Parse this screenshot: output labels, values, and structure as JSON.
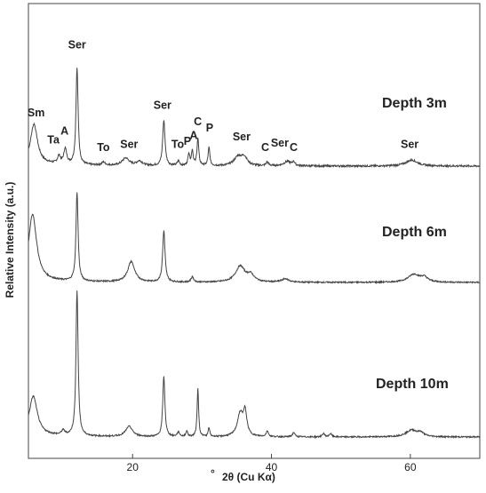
{
  "chart_data": {
    "type": "line",
    "title": "",
    "xlabel": "2θ (Cu Kα)",
    "xlabel_prefix": "°",
    "ylabel": "Relative Intensity (a.u.)",
    "xlim": [
      5,
      70
    ],
    "xticks": [
      20,
      40,
      60
    ],
    "grid": false,
    "legend": "none",
    "line_color": "#444444",
    "series": [
      {
        "name": "Depth 3m",
        "label": "Depth 3m",
        "baseline": 0,
        "peaks": [
          {
            "x": 5.8,
            "h": 0.26,
            "w": 0.6
          },
          {
            "x": 9.4,
            "h": 0.05,
            "w": 0.25
          },
          {
            "x": 10.3,
            "h": 0.1,
            "w": 0.25
          },
          {
            "x": 12.0,
            "h": 0.64,
            "w": 0.18
          },
          {
            "x": 15.8,
            "h": 0.02,
            "w": 0.3
          },
          {
            "x": 19.0,
            "h": 0.05,
            "w": 0.6
          },
          {
            "x": 21.0,
            "h": 0.03,
            "w": 0.5
          },
          {
            "x": 24.5,
            "h": 0.3,
            "w": 0.2
          },
          {
            "x": 26.6,
            "h": 0.03,
            "w": 0.2
          },
          {
            "x": 28.1,
            "h": 0.08,
            "w": 0.15
          },
          {
            "x": 28.6,
            "h": 0.1,
            "w": 0.15
          },
          {
            "x": 29.4,
            "h": 0.18,
            "w": 0.15
          },
          {
            "x": 31.0,
            "h": 0.12,
            "w": 0.15
          },
          {
            "x": 35.2,
            "h": 0.06,
            "w": 0.7
          },
          {
            "x": 36.1,
            "h": 0.05,
            "w": 0.5
          },
          {
            "x": 39.4,
            "h": 0.025,
            "w": 0.2
          },
          {
            "x": 42.3,
            "h": 0.03,
            "w": 0.6
          },
          {
            "x": 43.2,
            "h": 0.025,
            "w": 0.2
          },
          {
            "x": 60.2,
            "h": 0.04,
            "w": 1.0
          }
        ],
        "annotations": [
          {
            "text": "Sm",
            "x": 6.1,
            "y": 0.33
          },
          {
            "text": "Ta",
            "x": 8.6,
            "y": 0.15
          },
          {
            "text": "A",
            "x": 10.2,
            "y": 0.21
          },
          {
            "text": "Ser",
            "x": 12.0,
            "y": 0.78
          },
          {
            "text": "To",
            "x": 15.8,
            "y": 0.1
          },
          {
            "text": "Ser",
            "x": 19.5,
            "y": 0.12
          },
          {
            "text": "Ser",
            "x": 24.3,
            "y": 0.38
          },
          {
            "text": "To",
            "x": 26.5,
            "y": 0.12
          },
          {
            "text": "A",
            "x": 28.8,
            "y": 0.18
          },
          {
            "text": "P",
            "x": 27.9,
            "y": 0.14
          },
          {
            "text": "C",
            "x": 29.4,
            "y": 0.27
          },
          {
            "text": "P",
            "x": 31.1,
            "y": 0.23
          },
          {
            "text": "Ser",
            "x": 35.7,
            "y": 0.17
          },
          {
            "text": "C",
            "x": 39.1,
            "y": 0.1
          },
          {
            "text": "Ser",
            "x": 41.2,
            "y": 0.13
          },
          {
            "text": "C",
            "x": 43.2,
            "y": 0.1
          },
          {
            "text": "Ser",
            "x": 59.9,
            "y": 0.12
          }
        ]
      },
      {
        "name": "Depth 6m",
        "label": "Depth 6m",
        "baseline": 0,
        "peaks": [
          {
            "x": 5.6,
            "h": 0.58,
            "w": 0.7
          },
          {
            "x": 12.0,
            "h": 0.78,
            "w": 0.18
          },
          {
            "x": 19.8,
            "h": 0.18,
            "w": 0.6
          },
          {
            "x": 24.5,
            "h": 0.45,
            "w": 0.2
          },
          {
            "x": 28.6,
            "h": 0.05,
            "w": 0.2
          },
          {
            "x": 35.5,
            "h": 0.14,
            "w": 0.8
          },
          {
            "x": 37.0,
            "h": 0.06,
            "w": 0.6
          },
          {
            "x": 42.0,
            "h": 0.03,
            "w": 0.6
          },
          {
            "x": 60.5,
            "h": 0.07,
            "w": 1.0
          },
          {
            "x": 62.0,
            "h": 0.04,
            "w": 0.6
          }
        ],
        "annotations": []
      },
      {
        "name": "Depth 10m",
        "label": "Depth 10m",
        "baseline": 0,
        "peaks": [
          {
            "x": 5.7,
            "h": 0.34,
            "w": 0.7
          },
          {
            "x": 10.0,
            "h": 0.04,
            "w": 0.3
          },
          {
            "x": 12.0,
            "h": 1.28,
            "w": 0.18
          },
          {
            "x": 19.5,
            "h": 0.09,
            "w": 0.6
          },
          {
            "x": 24.5,
            "h": 0.53,
            "w": 0.18
          },
          {
            "x": 26.6,
            "h": 0.04,
            "w": 0.2
          },
          {
            "x": 27.8,
            "h": 0.05,
            "w": 0.15
          },
          {
            "x": 29.4,
            "h": 0.42,
            "w": 0.13
          },
          {
            "x": 31.0,
            "h": 0.08,
            "w": 0.13
          },
          {
            "x": 35.5,
            "h": 0.2,
            "w": 0.5
          },
          {
            "x": 36.2,
            "h": 0.2,
            "w": 0.3
          },
          {
            "x": 39.4,
            "h": 0.05,
            "w": 0.2
          },
          {
            "x": 43.2,
            "h": 0.04,
            "w": 0.2
          },
          {
            "x": 47.5,
            "h": 0.03,
            "w": 0.2
          },
          {
            "x": 48.5,
            "h": 0.03,
            "w": 0.2
          },
          {
            "x": 60.2,
            "h": 0.06,
            "w": 1.0
          },
          {
            "x": 61.5,
            "h": 0.03,
            "w": 0.5
          }
        ],
        "annotations": []
      }
    ]
  }
}
